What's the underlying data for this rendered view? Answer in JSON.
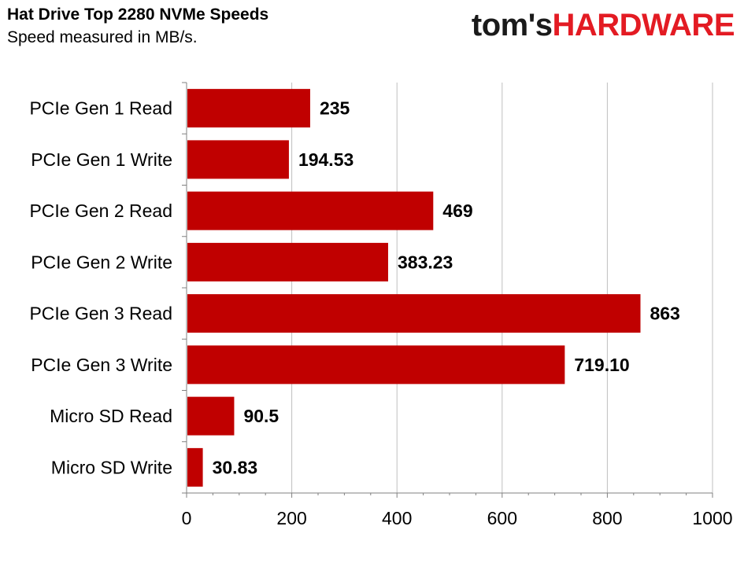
{
  "header": {
    "title": "Hat Drive Top 2280 NVMe Speeds",
    "subtitle": "Speed measured in MB/s.",
    "logo_part1": "tom's",
    "logo_part2": "HARDWARE"
  },
  "colors": {
    "bar": "#c00000",
    "grid": "#bfbfbf",
    "axis": "#808080"
  },
  "chart_data": {
    "type": "bar",
    "orientation": "horizontal",
    "title": "Hat Drive Top 2280 NVMe Speeds",
    "subtitle": "Speed measured in MB/s.",
    "categories": [
      "PCIe Gen 1 Read",
      "PCIe Gen 1 Write",
      "PCIe Gen 2 Read",
      "PCIe Gen 2 Write",
      "PCIe Gen 3 Read",
      "PCIe Gen 3 Write",
      "Micro SD Read",
      "Micro SD Write"
    ],
    "values": [
      235,
      194.53,
      469,
      383.23,
      863,
      719.1,
      90.5,
      30.83
    ],
    "value_labels": [
      "235",
      "194.53",
      "469",
      "383.23",
      "863",
      "719.10",
      "90.5",
      "30.83"
    ],
    "xlim": [
      0,
      1000
    ],
    "x_ticks": [
      0,
      200,
      400,
      600,
      800,
      1000
    ],
    "grid": true,
    "legend": "none"
  }
}
